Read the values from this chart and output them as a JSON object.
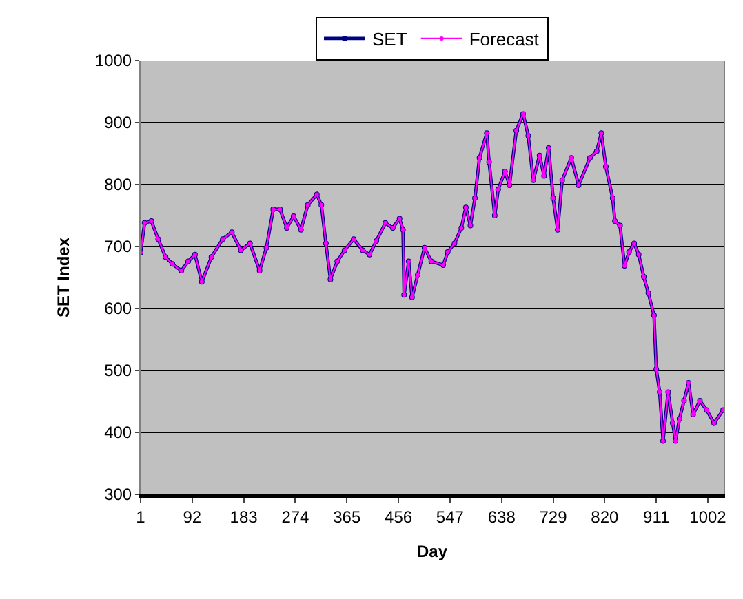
{
  "chart_data": {
    "type": "line",
    "xlabel": "Day",
    "ylabel": "SET Index",
    "x": [
      1,
      8,
      20,
      32,
      45,
      57,
      73,
      85,
      97,
      109,
      126,
      146,
      162,
      178,
      194,
      211,
      223,
      235,
      247,
      259,
      271,
      284,
      296,
      312,
      320,
      328,
      336,
      348,
      361,
      377,
      393,
      405,
      417,
      433,
      446,
      458,
      464,
      466,
      474,
      480,
      490,
      502,
      514,
      535,
      543,
      555,
      567,
      575,
      583,
      591,
      599,
      612,
      616,
      626,
      632,
      644,
      652,
      664,
      676,
      685,
      694,
      705,
      713,
      721,
      729,
      737,
      745,
      761,
      774,
      794,
      806,
      814,
      822,
      834,
      838,
      847,
      855,
      863,
      872,
      880,
      889,
      897,
      907,
      911,
      917,
      923,
      932,
      940,
      945,
      952,
      960,
      968,
      976,
      988,
      1000,
      1013,
      1029
    ],
    "series": [
      {
        "name": "SET",
        "color": "#000080",
        "marker": "circle",
        "values": [
          690,
          738,
          741,
          712,
          683,
          672,
          661,
          676,
          687,
          643,
          683,
          712,
          723,
          694,
          705,
          661,
          698,
          760,
          760,
          730,
          749,
          727,
          767,
          784,
          767,
          705,
          647,
          676,
          694,
          712,
          694,
          687,
          709,
          738,
          730,
          745,
          727,
          622,
          676,
          618,
          654,
          698,
          676,
          670,
          691,
          705,
          730,
          763,
          734,
          778,
          843,
          883,
          836,
          750,
          792,
          821,
          799,
          887,
          914,
          879,
          807,
          847,
          814,
          859,
          778,
          727,
          807,
          843,
          799,
          843,
          854,
          883,
          829,
          778,
          741,
          734,
          669,
          691,
          705,
          687,
          651,
          625,
          589,
          502,
          465,
          386,
          465,
          415,
          386,
          422,
          451,
          480,
          429,
          451,
          436,
          415,
          436
        ]
      },
      {
        "name": "Forecast",
        "color": "#ff00ff",
        "marker": "circle",
        "values": [
          690,
          738,
          741,
          712,
          683,
          672,
          661,
          676,
          687,
          643,
          683,
          712,
          723,
          694,
          705,
          661,
          698,
          760,
          760,
          730,
          749,
          727,
          767,
          784,
          767,
          705,
          647,
          676,
          694,
          712,
          694,
          687,
          709,
          738,
          730,
          745,
          727,
          622,
          676,
          618,
          654,
          698,
          676,
          670,
          691,
          705,
          730,
          763,
          734,
          778,
          843,
          883,
          836,
          750,
          792,
          821,
          799,
          887,
          914,
          879,
          807,
          847,
          814,
          859,
          778,
          727,
          807,
          843,
          799,
          843,
          854,
          883,
          829,
          778,
          741,
          734,
          669,
          691,
          705,
          687,
          651,
          625,
          589,
          502,
          465,
          386,
          465,
          415,
          386,
          422,
          451,
          480,
          429,
          451,
          436,
          415,
          436
        ]
      }
    ],
    "xlim": [
      1,
      1030
    ],
    "xticks": [
      1,
      92,
      183,
      274,
      365,
      456,
      547,
      638,
      729,
      820,
      911,
      1002
    ],
    "ylim": [
      300,
      1000
    ],
    "yticks": [
      300,
      400,
      500,
      600,
      700,
      800,
      900,
      1000
    ],
    "grid": "y",
    "legend": "top"
  }
}
